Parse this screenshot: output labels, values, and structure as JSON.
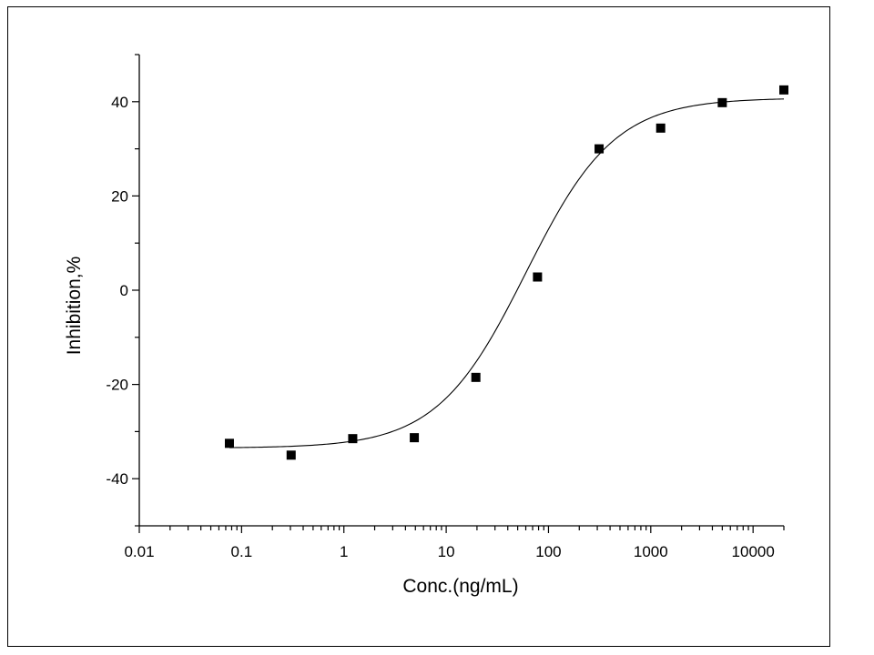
{
  "chart_data": {
    "type": "scatter",
    "xlabel": "Conc.(ng/mL)",
    "ylabel": "Inhibition,%",
    "x_scale": "log",
    "xlim": [
      0.01,
      20000
    ],
    "ylim": [
      -50,
      50
    ],
    "x_ticks": [
      0.01,
      0.1,
      1,
      10,
      100,
      1000,
      10000
    ],
    "x_tick_labels": [
      "0.01",
      "0.1",
      "1",
      "10",
      "100",
      "1000",
      "10000"
    ],
    "y_ticks": [
      -40,
      -20,
      0,
      20,
      40
    ],
    "y_tick_labels": [
      "-40",
      "-20",
      "0",
      "20",
      "40"
    ],
    "grid": false,
    "legend": "none",
    "series": [
      {
        "marker": "square",
        "color": "#000000",
        "points": [
          {
            "x": 0.076,
            "y": -32.5
          },
          {
            "x": 0.305,
            "y": -35.0
          },
          {
            "x": 1.22,
            "y": -31.5
          },
          {
            "x": 4.88,
            "y": -31.3
          },
          {
            "x": 19.5,
            "y": -18.5
          },
          {
            "x": 78.1,
            "y": 2.8
          },
          {
            "x": 312.5,
            "y": 30.0
          },
          {
            "x": 1250,
            "y": 34.4
          },
          {
            "x": 5000,
            "y": 39.8
          },
          {
            "x": 20000,
            "y": 42.5
          }
        ]
      }
    ],
    "fit_curve": {
      "kind": "four-parameter logistic",
      "color": "#000000",
      "bottom": -33.5,
      "top": 40.8,
      "ec50": 60,
      "hill": 1.0,
      "x_range": [
        0.076,
        20000
      ]
    }
  }
}
